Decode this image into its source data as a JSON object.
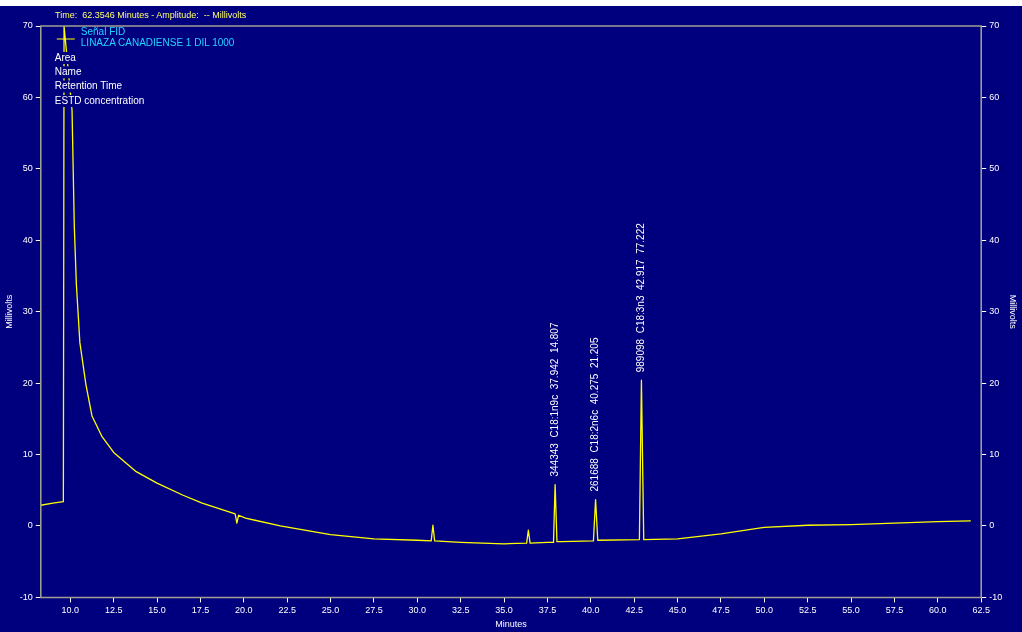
{
  "chart_data": {
    "type": "line",
    "title": "Time:  62.3546 Minutes - Amplitude:  -- Millivolts",
    "xlabel": "Minutes",
    "ylabel": "Millivolts",
    "y2label": "Millivolts",
    "legend_title": "Señal FID",
    "legend": "top left",
    "marker": "none",
    "grid": false,
    "series": [
      {
        "name": "LINAZA CANADIENSE 1 DIL 1000",
        "color": "#ffff00",
        "x": [
          8.3,
          9.0,
          9.6,
          9.62,
          9.64,
          10.1,
          10.23,
          10.35,
          10.55,
          10.9,
          11.25,
          11.83,
          12.5,
          13.8,
          15.0,
          16.5,
          17.6,
          19.5,
          19.6,
          19.7,
          20.1,
          22.1,
          25.0,
          27.5,
          30.0,
          30.8,
          30.9,
          31.0,
          32.5,
          35.0,
          36.3,
          36.4,
          36.5,
          37.5,
          37.85,
          37.942,
          38.05,
          38.3,
          40.15,
          40.275,
          40.4,
          42.8,
          42.917,
          43.05,
          45.0,
          47.5,
          50.0,
          52.5,
          55.0,
          57.5,
          60.0,
          61.9
        ],
        "values": [
          2.9,
          3.2,
          3.4,
          3.4,
          70,
          58.2,
          42,
          33.8,
          25.7,
          19.8,
          15.4,
          12.5,
          10.3,
          7.6,
          6.0,
          4.3,
          3.2,
          1.7,
          0.4,
          1.5,
          1.1,
          0,
          -1.2,
          -1.8,
          -2.0,
          -2.1,
          0.1,
          -2.1,
          -2.3,
          -2.5,
          -2.4,
          -0.6,
          -2.4,
          -2.3,
          -2.3,
          5.8,
          -2.2,
          -2.2,
          -2.1,
          3.7,
          -2.0,
          -1.9,
          20.4,
          -1.9,
          -1.8,
          -1.1,
          -0.2,
          0.1,
          0.2,
          0.4,
          0.6,
          0.7
        ]
      }
    ],
    "xlim": [
      8.3,
      62.5
    ],
    "xticks": [
      {
        "value": 10,
        "label": "10.0"
      },
      {
        "value": 12.5,
        "label": "12.5"
      },
      {
        "value": 15,
        "label": "15.0"
      },
      {
        "value": 17.5,
        "label": "17.5"
      },
      {
        "value": 20,
        "label": "20.0"
      },
      {
        "value": 22.5,
        "label": "22.5"
      },
      {
        "value": 25,
        "label": "25.0"
      },
      {
        "value": 27.5,
        "label": "27.5"
      },
      {
        "value": 30,
        "label": "30.0"
      },
      {
        "value": 32.5,
        "label": "32.5"
      },
      {
        "value": 35,
        "label": "35.0"
      },
      {
        "value": 37.5,
        "label": "37.5"
      },
      {
        "value": 40,
        "label": "40.0"
      },
      {
        "value": 42.5,
        "label": "42.5"
      },
      {
        "value": 45,
        "label": "45.0"
      },
      {
        "value": 47.5,
        "label": "47.5"
      },
      {
        "value": 50,
        "label": "50.0"
      },
      {
        "value": 52.5,
        "label": "52.5"
      },
      {
        "value": 55,
        "label": "55.0"
      },
      {
        "value": 57.5,
        "label": "57.5"
      },
      {
        "value": 60,
        "label": "60.0"
      },
      {
        "value": 62.5,
        "label": "62.5"
      }
    ],
    "ylim": [
      -10,
      70
    ],
    "yticks": [
      -10,
      0,
      10,
      20,
      30,
      40,
      50,
      60,
      70
    ],
    "y2lim": [
      -10,
      70
    ],
    "y2ticks": [
      -10,
      0,
      10,
      20,
      30,
      40,
      50,
      60,
      70
    ],
    "annotations": [
      "Area",
      "Name",
      "Retention Time",
      "ESTD concentration",
      {
        "text": "344343  C18:1n9c  37.942  14.807",
        "x": 37.942,
        "y": 5.8
      },
      {
        "text": "261688  C18:2n6c  40.275  21.205",
        "x": 40.275,
        "y": 3.7
      },
      {
        "text": "989098  C18:3n3  42.917  77.222",
        "x": 42.917,
        "y": 20.4
      }
    ]
  }
}
